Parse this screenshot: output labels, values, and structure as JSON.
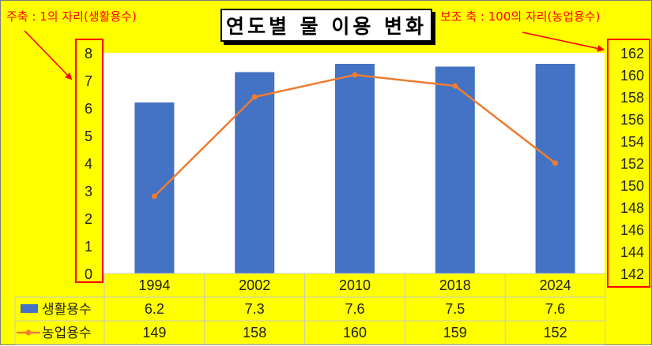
{
  "title": "연도별 물 이용 변화",
  "notes": {
    "primary": "주축 : 1의 자리(생활용수)",
    "secondary": "보조 축 : 100의 자리(농업용수)"
  },
  "colors": {
    "background": "#ffff00",
    "bar": "#4472c4",
    "line": "#ed7d31",
    "annotation": "#ff0000"
  },
  "chart_data": {
    "type": "bar",
    "categories": [
      "1994",
      "2002",
      "2010",
      "2018",
      "2024"
    ],
    "series": [
      {
        "name": "생활용수",
        "type": "bar",
        "axis": "primary",
        "values": [
          6.2,
          7.3,
          7.6,
          7.5,
          7.6
        ]
      },
      {
        "name": "농업용수",
        "type": "line",
        "axis": "secondary",
        "values": [
          149,
          158,
          160,
          159,
          152
        ]
      }
    ],
    "y_primary": {
      "min": 0,
      "max": 8,
      "ticks": [
        0,
        1,
        2,
        3,
        4,
        5,
        6,
        7,
        8
      ]
    },
    "y_secondary": {
      "min": 141,
      "max": 162.5,
      "ticks": [
        142,
        144,
        146,
        148,
        150,
        152,
        154,
        156,
        158,
        160,
        162
      ]
    },
    "data_table": true,
    "grid": false
  }
}
